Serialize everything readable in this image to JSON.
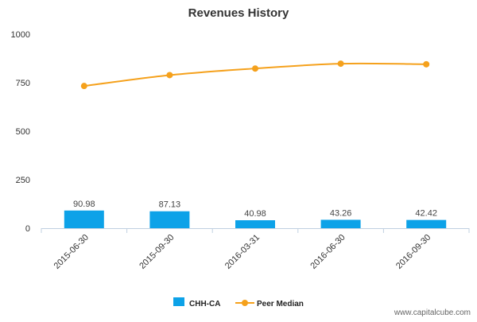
{
  "chart_data": {
    "type": "bar",
    "title": "Revenues History",
    "categories": [
      "2015-06-30",
      "2015-09-30",
      "2016-03-31",
      "2016-06-30",
      "2016-09-30"
    ],
    "series": [
      {
        "name": "CHH-CA",
        "type": "bar",
        "values": [
          90.98,
          87.13,
          40.98,
          43.26,
          42.42
        ],
        "labels": [
          "90.98",
          "87.13",
          "40.98",
          "43.26",
          "42.42"
        ],
        "color": "#0da2e8"
      },
      {
        "name": "Peer Median",
        "type": "line",
        "values": [
          733,
          789,
          823,
          848,
          845
        ],
        "color": "#f5a11c"
      }
    ],
    "yticks": [
      0,
      250,
      500,
      750,
      1000
    ],
    "ylim": [
      0,
      1000
    ],
    "grid": false,
    "legend_position": "bottom-center"
  },
  "watermark": "www.capitalcube.com"
}
